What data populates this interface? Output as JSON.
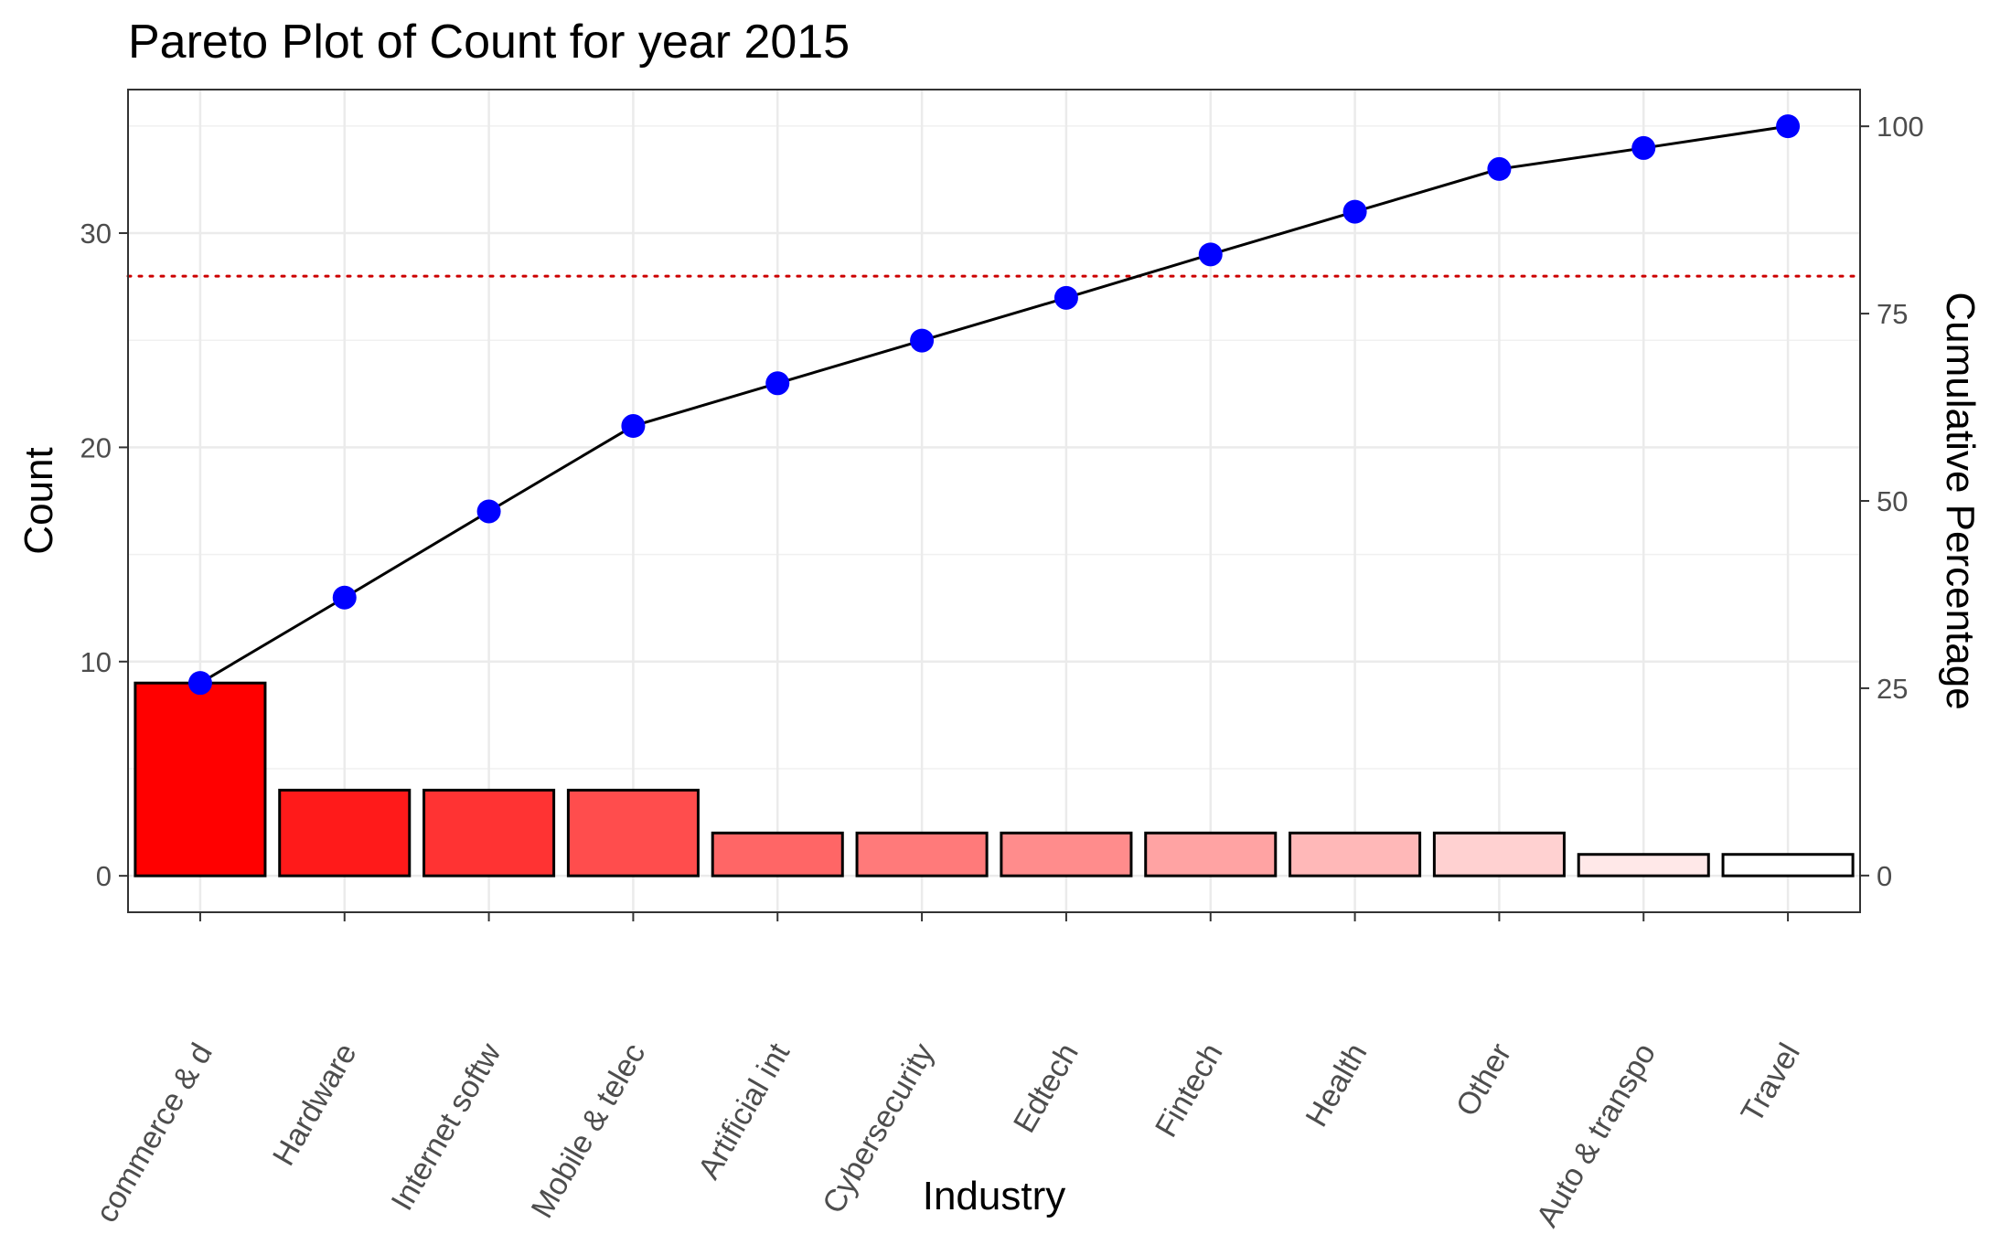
{
  "chart_data": {
    "type": "bar",
    "title": "Pareto Plot of Count for year 2015",
    "xlabel": "Industry",
    "ylabel": "Count",
    "y2label": "Cumulative Percentage",
    "categories": [
      "E-commerce & d",
      "Hardware",
      "Internet softw",
      "Mobile & telec",
      "Artificial int",
      "Cybersecurity",
      "Edtech",
      "Fintech",
      "Health",
      "Other",
      "Auto & transpo",
      "Travel"
    ],
    "category_labels_visible": [
      "commerce & d",
      "Hardware",
      "Internet softw",
      "Mobile & telec",
      "Artificial int",
      "Cybersecurity",
      "Edtech",
      "Fintech",
      "Health",
      "Other",
      "Auto & transpo",
      "Travel"
    ],
    "series": [
      {
        "kind": "bar",
        "values": [
          9,
          4,
          4,
          4,
          2,
          2,
          2,
          2,
          2,
          2,
          1,
          1
        ],
        "colors": [
          "#ff0000",
          "#ff1a1a",
          "#ff3333",
          "#ff4d4d",
          "#ff6666",
          "#ff7a7a",
          "#ff8c8c",
          "#ffa3a3",
          "#ffb8b8",
          "#ffd1d1",
          "#ffe8e8",
          "#ffffff"
        ]
      },
      {
        "kind": "line",
        "axis": "secondary",
        "values": [
          25.7,
          37.1,
          48.6,
          60.0,
          65.7,
          71.4,
          77.1,
          82.9,
          88.6,
          94.3,
          97.1,
          100.0
        ],
        "color": "#000000",
        "point_color": "#0000ff"
      }
    ],
    "reference_line": {
      "axis": "secondary",
      "value": 80,
      "color": "#cc0000",
      "style": "dotted"
    },
    "ylim": [
      -1.7,
      36.7
    ],
    "y2lim": [
      -4.9,
      104.9
    ],
    "yticks": [
      0,
      10,
      20,
      30
    ],
    "yticks_minor": [
      5,
      15,
      25,
      35
    ],
    "y2ticks": [
      0,
      25,
      50,
      75,
      100
    ],
    "grid": true,
    "legend": "none"
  }
}
